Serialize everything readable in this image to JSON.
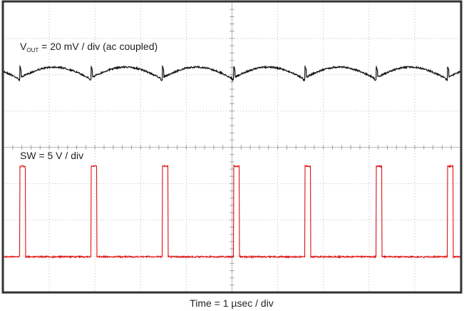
{
  "vout_label": {
    "symbol": "V",
    "subscript": "OUT",
    "text": " = 20 mV / div (ac coupled)"
  },
  "sw_label": "SW = 5 V / div",
  "time_label": "Time = 1 µsec / div"
}
